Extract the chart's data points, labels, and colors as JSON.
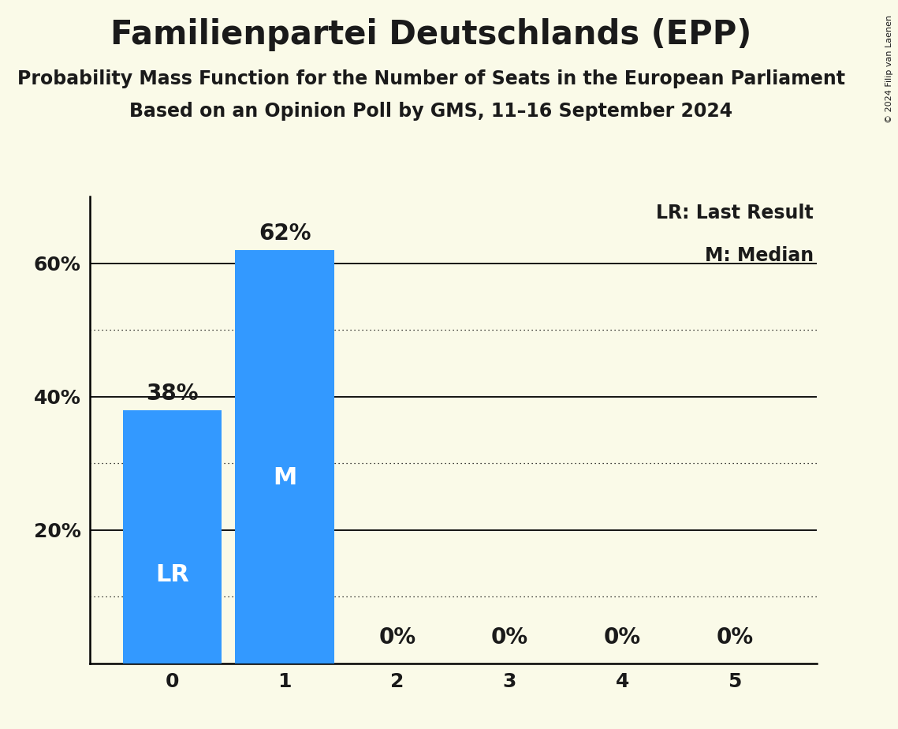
{
  "title": "Familienpartei Deutschlands (EPP)",
  "subtitle1": "Probability Mass Function for the Number of Seats in the European Parliament",
  "subtitle2": "Based on an Opinion Poll by GMS, 11–16 September 2024",
  "copyright": "© 2024 Filip van Laenen",
  "categories": [
    0,
    1,
    2,
    3,
    4,
    5
  ],
  "values": [
    0.38,
    0.62,
    0.0,
    0.0,
    0.0,
    0.0
  ],
  "bar_color": "#3399ff",
  "bar_labels": [
    "38%",
    "62%",
    "0%",
    "0%",
    "0%",
    "0%"
  ],
  "last_result_seat": 0,
  "median_seat": 1,
  "background_color": "#fafae8",
  "text_color": "#1a1a1a",
  "ylim": [
    0,
    0.7
  ],
  "yticks": [
    0.0,
    0.2,
    0.4,
    0.6
  ],
  "ytick_labels": [
    "",
    "20%",
    "40%",
    "60%"
  ],
  "solid_lines": [
    0.2,
    0.4,
    0.6
  ],
  "dotted_lines": [
    0.1,
    0.3,
    0.5
  ],
  "legend_lr": "LR: Last Result",
  "legend_m": "M: Median",
  "title_fontsize": 30,
  "subtitle_fontsize": 17,
  "bar_label_fontsize": 20,
  "axis_label_fontsize": 18,
  "legend_fontsize": 17,
  "inbar_fontsize": 22,
  "bar_width": 0.88
}
